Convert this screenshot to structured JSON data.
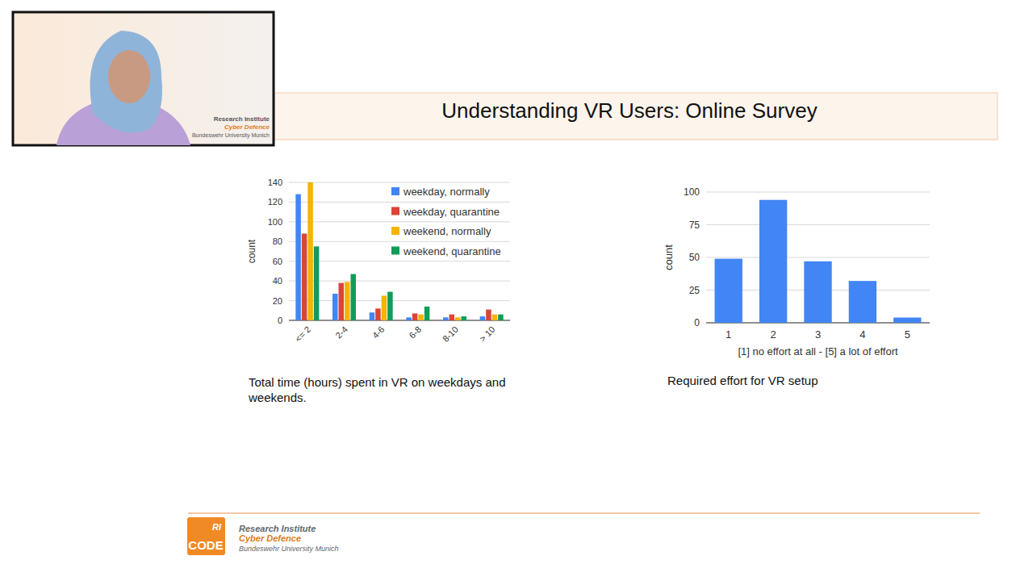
{
  "page": {
    "title": "Understanding VR Users: Online Survey",
    "webcam": {
      "lines": [
        "Research Institute",
        "Cyber Defence",
        "Bundeswehr University Munich"
      ]
    },
    "logo": {
      "badge": "RI",
      "name": "CODE",
      "lines": [
        "Research Institute",
        "Cyber Defence",
        "Bundeswehr University Munich"
      ]
    }
  },
  "chart_data": [
    {
      "type": "bar",
      "title": "Total time (hours) spent in VR on weekdays and weekends.",
      "y_label": "count",
      "categories": [
        "<= 2",
        "2-4",
        "4-6",
        "6-8",
        "8-10",
        "> 10"
      ],
      "series": [
        {
          "name": "weekday, normally",
          "color": "#4285f4",
          "values": [
            128,
            27,
            8,
            3,
            3,
            4
          ]
        },
        {
          "name": "weekday, quarantine",
          "color": "#db4437",
          "values": [
            88,
            38,
            12,
            7,
            6,
            11
          ]
        },
        {
          "name": "weekend, normally",
          "color": "#f4b400",
          "values": [
            140,
            39,
            25,
            6,
            3,
            6
          ]
        },
        {
          "name": "weekend, quarantine",
          "color": "#0f9d58",
          "values": [
            75,
            47,
            29,
            14,
            4,
            6
          ]
        }
      ],
      "ylim": [
        0,
        140
      ],
      "yticks": [
        0,
        20,
        40,
        60,
        80,
        100,
        120,
        140
      ],
      "grid": true,
      "legend": "top-right"
    },
    {
      "type": "bar",
      "title": "Required effort for VR setup",
      "y_label": "count",
      "x_label": "[1] no effort at all - [5] a lot of effort",
      "categories": [
        "1",
        "2",
        "3",
        "4",
        "5"
      ],
      "values": [
        49,
        94,
        47,
        32,
        4
      ],
      "color": "#4285f4",
      "ylim": [
        0,
        100
      ],
      "yticks": [
        0,
        25,
        50,
        75,
        100
      ],
      "grid": true
    }
  ]
}
